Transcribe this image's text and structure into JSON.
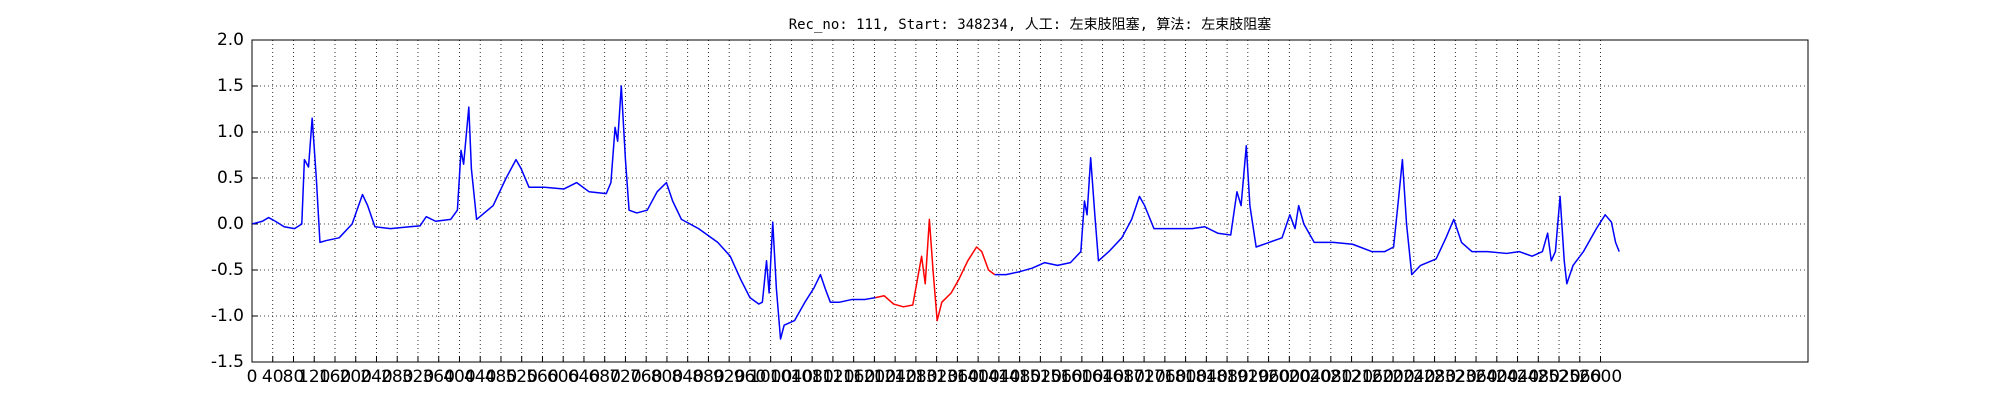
{
  "chart_data": {
    "type": "line",
    "title": "Rec_no: 111, Start: 348234, 人工: 左束肢阻塞, 算法: 左束肢阻塞",
    "xlim": [
      0,
      3000
    ],
    "xticks": [
      0,
      40,
      80,
      120,
      160,
      200,
      240,
      280,
      320,
      360,
      400,
      440,
      480,
      520,
      560,
      600,
      640,
      680,
      720,
      760,
      800,
      840,
      880,
      920,
      960,
      1000,
      1040,
      1080,
      1120,
      1160,
      1200,
      1240,
      1280,
      1320,
      1360,
      1400,
      1440,
      1480,
      1520,
      1560,
      1600,
      1640,
      1680,
      1720,
      1760,
      1800,
      1840,
      1880,
      1920,
      1960,
      2000,
      2040,
      2080,
      2120,
      2160,
      2200,
      2240,
      2280,
      2320,
      2360,
      2400,
      2440,
      2480,
      2520,
      2560,
      2600
    ],
    "ylim": [
      -1.5,
      2.0
    ],
    "yticks": [
      -1.5,
      {
        "value": -1.0,
        "label": "-1.0"
      },
      -0.5,
      {
        "value": 0.0,
        "label": "0.0"
      },
      0.5,
      {
        "value": 1.0,
        "label": "1.0"
      },
      1.5,
      {
        "value": 2.0,
        "label": "2.0"
      }
    ],
    "grid": true,
    "series": [
      {
        "color": "#0000ff",
        "x": [
          0,
          20,
          32,
          45,
          62,
          82,
          96,
          101,
          109,
          116,
          124,
          131,
          143,
          168,
          193,
          213,
          223,
          237,
          267,
          304,
          324,
          336,
          354,
          383,
          396,
          403,
          408,
          418,
          423,
          433,
          448,
          465,
          490,
          509,
          519,
          534,
          564,
          601,
          626,
          650,
          683,
          692,
          700,
          705,
          712,
          720,
          727,
          742,
          762,
          781,
          799,
          811,
          828,
          861,
          898,
          922,
          942,
          960,
          977,
          984,
          992,
          997,
          1004,
          1011,
          1019,
          1026,
          1046,
          1066,
          1083,
          1096,
          1105,
          1115,
          1133,
          1157,
          1182,
          1202
        ],
        "values": [
          0.0,
          0.03,
          0.07,
          0.03,
          -0.03,
          -0.05,
          0.0,
          0.7,
          0.62,
          1.15,
          0.5,
          -0.2,
          -0.18,
          -0.15,
          0.0,
          0.32,
          0.2,
          -0.03,
          -0.05,
          -0.03,
          -0.02,
          0.08,
          0.03,
          0.05,
          0.15,
          0.8,
          0.65,
          1.27,
          0.6,
          0.05,
          0.12,
          0.2,
          0.5,
          0.7,
          0.6,
          0.4,
          0.4,
          0.38,
          0.45,
          0.35,
          0.33,
          0.45,
          1.05,
          0.9,
          1.5,
          0.7,
          0.15,
          0.12,
          0.15,
          0.35,
          0.45,
          0.25,
          0.05,
          -0.05,
          -0.2,
          -0.35,
          -0.6,
          -0.8,
          -0.87,
          -0.85,
          -0.4,
          -0.75,
          0.02,
          -0.7,
          -1.25,
          -1.1,
          -1.05,
          -0.85,
          -0.7,
          -0.55,
          -0.7,
          -0.85,
          -0.85,
          -0.82,
          -0.82,
          -0.8
        ]
      },
      {
        "color": "#ff0000",
        "x": [
          1202,
          1219,
          1237,
          1256,
          1274,
          1283,
          1291,
          1298,
          1306,
          1313,
          1321,
          1330,
          1348,
          1363,
          1380,
          1397,
          1407,
          1420,
          1432
        ],
        "values": [
          -0.8,
          -0.78,
          -0.87,
          -0.9,
          -0.88,
          -0.6,
          -0.35,
          -0.65,
          0.05,
          -0.5,
          -1.05,
          -0.85,
          -0.75,
          -0.6,
          -0.4,
          -0.25,
          -0.3,
          -0.5,
          -0.55
        ]
      },
      {
        "color": "#0000ff",
        "x": [
          1432,
          1454,
          1479,
          1504,
          1528,
          1553,
          1578,
          1598,
          1605,
          1610,
          1617,
          1625,
          1632,
          1652,
          1677,
          1696,
          1711,
          1721,
          1739,
          1763,
          1788,
          1813,
          1837,
          1862,
          1887,
          1899,
          1907,
          1917,
          1924,
          1936,
          1961,
          1986,
          2001,
          2011,
          2018,
          2028,
          2048,
          2085,
          2122,
          2159,
          2184,
          2201,
          2211,
          2218,
          2226,
          2236,
          2253,
          2283,
          2302,
          2317,
          2332,
          2352,
          2382,
          2419,
          2443,
          2468,
          2488,
          2498,
          2505,
          2513,
          2522,
          2530,
          2535,
          2547,
          2567,
          2592,
          2609,
          2621,
          2629,
          2636
        ],
        "values": [
          -0.55,
          -0.55,
          -0.52,
          -0.48,
          -0.42,
          -0.45,
          -0.42,
          -0.3,
          0.25,
          0.1,
          0.72,
          0.1,
          -0.4,
          -0.3,
          -0.15,
          0.05,
          0.3,
          0.2,
          -0.05,
          -0.05,
          -0.05,
          -0.05,
          -0.03,
          -0.1,
          -0.12,
          0.35,
          0.2,
          0.85,
          0.2,
          -0.25,
          -0.2,
          -0.15,
          0.1,
          -0.05,
          0.2,
          0.0,
          -0.2,
          -0.2,
          -0.22,
          -0.3,
          -0.3,
          -0.25,
          0.3,
          0.7,
          0.0,
          -0.55,
          -0.45,
          -0.38,
          -0.15,
          0.05,
          -0.2,
          -0.3,
          -0.3,
          -0.32,
          -0.3,
          -0.35,
          -0.3,
          -0.1,
          -0.4,
          -0.3,
          0.3,
          -0.4,
          -0.65,
          -0.45,
          -0.3,
          -0.05,
          0.1,
          0.02,
          -0.2,
          -0.3
        ]
      }
    ]
  }
}
